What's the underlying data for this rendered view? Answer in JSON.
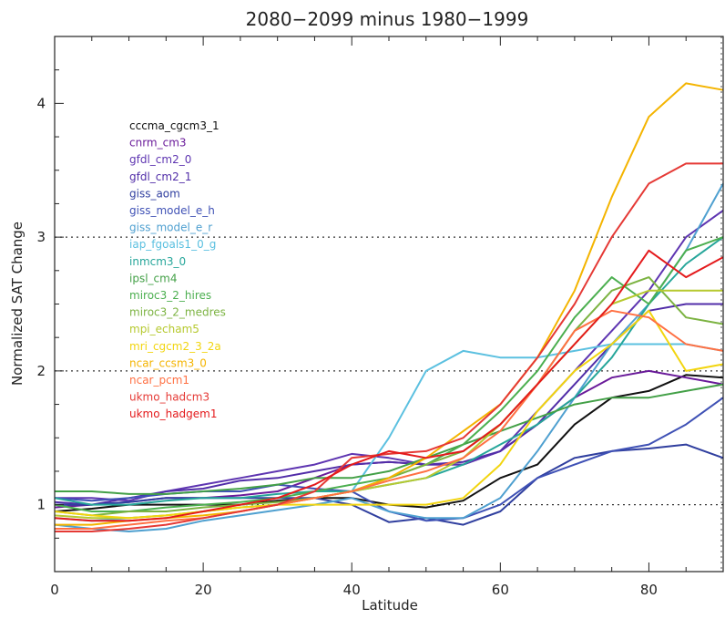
{
  "chart_data": {
    "type": "line",
    "title": "2080−2099 minus 1980−1999",
    "xlabel": "Latitude",
    "ylabel": "Normalized SAT Change",
    "xlim": [
      0,
      90
    ],
    "ylim": [
      0.5,
      4.5
    ],
    "x_ticks": [
      "0",
      "20",
      "40",
      "60",
      "80"
    ],
    "y_ticks": [
      "1",
      "2",
      "3",
      "4"
    ],
    "reference_lines": [
      1,
      2,
      3
    ],
    "legend_placement": "upper-left",
    "x": [
      0,
      5,
      10,
      15,
      20,
      25,
      30,
      35,
      40,
      45,
      50,
      55,
      60,
      65,
      70,
      75,
      80,
      85,
      90
    ],
    "series": [
      {
        "name": "cccma_cgcm3_1",
        "color": "#111111",
        "values": [
          0.95,
          0.97,
          1.0,
          1.0,
          1.0,
          1.0,
          1.03,
          1.05,
          1.05,
          1.0,
          0.98,
          1.03,
          1.2,
          1.3,
          1.6,
          1.8,
          1.85,
          1.97,
          1.95
        ]
      },
      {
        "name": "cnrm_cm3",
        "color": "#6a1b9a",
        "values": [
          0.98,
          1.0,
          1.02,
          1.05,
          1.05,
          1.07,
          1.1,
          1.2,
          1.3,
          1.32,
          1.3,
          1.3,
          1.4,
          1.6,
          1.8,
          1.95,
          2.0,
          1.95,
          1.9
        ]
      },
      {
        "name": "gfdl_cm2_0",
        "color": "#5e35b1",
        "values": [
          1.05,
          1.05,
          1.03,
          1.1,
          1.15,
          1.2,
          1.25,
          1.3,
          1.38,
          1.35,
          1.3,
          1.3,
          1.4,
          1.7,
          2.0,
          2.3,
          2.6,
          3.0,
          3.2
        ]
      },
      {
        "name": "gfdl_cm2_1",
        "color": "#512da8",
        "values": [
          1.02,
          1.0,
          1.05,
          1.1,
          1.12,
          1.18,
          1.2,
          1.25,
          1.3,
          1.32,
          1.3,
          1.32,
          1.4,
          1.6,
          1.9,
          2.2,
          2.45,
          2.5,
          2.5
        ]
      },
      {
        "name": "giss_aom",
        "color": "#303f9f",
        "values": [
          1.0,
          1.0,
          1.02,
          1.05,
          1.05,
          1.05,
          1.05,
          1.05,
          1.0,
          0.87,
          0.9,
          0.85,
          0.95,
          1.2,
          1.35,
          1.4,
          1.42,
          1.45,
          1.35
        ]
      },
      {
        "name": "giss_model_e_h",
        "color": "#3f51b5",
        "values": [
          1.05,
          1.03,
          1.05,
          1.08,
          1.1,
          1.1,
          1.15,
          1.12,
          1.1,
          0.95,
          0.88,
          0.9,
          1.0,
          1.2,
          1.3,
          1.4,
          1.45,
          1.6,
          1.8
        ]
      },
      {
        "name": "giss_model_e_r",
        "color": "#4fa0d0",
        "values": [
          0.85,
          0.82,
          0.8,
          0.82,
          0.88,
          0.92,
          0.96,
          1.0,
          1.05,
          0.95,
          0.9,
          0.9,
          1.05,
          1.4,
          1.8,
          2.2,
          2.5,
          2.9,
          3.4
        ]
      },
      {
        "name": "iap_fgoals1_0_g",
        "color": "#5bc0e0",
        "values": [
          0.9,
          0.88,
          0.9,
          0.92,
          0.95,
          0.98,
          1.0,
          1.05,
          1.1,
          1.5,
          2.0,
          2.15,
          2.1,
          2.1,
          2.15,
          2.2,
          2.2,
          2.2,
          2.15
        ]
      },
      {
        "name": "inmcm3_0",
        "color": "#26a69a",
        "values": [
          1.05,
          1.0,
          1.0,
          1.03,
          1.05,
          1.05,
          1.08,
          1.1,
          1.1,
          1.15,
          1.2,
          1.3,
          1.45,
          1.6,
          1.8,
          2.1,
          2.5,
          2.8,
          3.0
        ]
      },
      {
        "name": "ipsl_cm4",
        "color": "#43a047",
        "values": [
          1.1,
          1.1,
          1.08,
          1.08,
          1.1,
          1.12,
          1.15,
          1.2,
          1.2,
          1.25,
          1.35,
          1.45,
          1.55,
          1.65,
          1.75,
          1.8,
          1.8,
          1.85,
          1.9
        ]
      },
      {
        "name": "miroc3_2_hires",
        "color": "#4caf50",
        "values": [
          1.0,
          0.95,
          0.95,
          0.98,
          1.0,
          1.02,
          1.05,
          1.1,
          1.15,
          1.2,
          1.3,
          1.45,
          1.7,
          2.0,
          2.4,
          2.7,
          2.5,
          2.9,
          3.0
        ]
      },
      {
        "name": "miroc3_2_medres",
        "color": "#7cb342",
        "values": [
          0.95,
          0.92,
          0.95,
          0.95,
          0.98,
          1.0,
          1.02,
          1.05,
          1.1,
          1.2,
          1.3,
          1.4,
          1.6,
          1.9,
          2.3,
          2.6,
          2.7,
          2.4,
          2.35
        ]
      },
      {
        "name": "mpi_echam5",
        "color": "#b6c92f",
        "values": [
          0.92,
          0.9,
          0.9,
          0.92,
          0.95,
          0.98,
          1.0,
          1.05,
          1.1,
          1.15,
          1.2,
          1.35,
          1.6,
          1.9,
          2.2,
          2.5,
          2.6,
          2.6,
          2.6
        ]
      },
      {
        "name": "mri_cgcm2_3_2a",
        "color": "#f2d50f",
        "values": [
          0.95,
          0.92,
          0.9,
          0.92,
          0.95,
          0.98,
          1.0,
          1.0,
          1.0,
          1.0,
          1.0,
          1.05,
          1.3,
          1.7,
          2.0,
          2.2,
          2.45,
          2.0,
          2.05
        ]
      },
      {
        "name": "ncar_ccsm3_0",
        "color": "#f4b400",
        "values": [
          0.85,
          0.85,
          0.88,
          0.9,
          0.92,
          0.95,
          1.0,
          1.05,
          1.1,
          1.2,
          1.35,
          1.55,
          1.75,
          2.1,
          2.6,
          3.3,
          3.9,
          4.15,
          4.1
        ]
      },
      {
        "name": "ncar_pcm1",
        "color": "#ff7043",
        "values": [
          0.82,
          0.82,
          0.85,
          0.88,
          0.9,
          0.95,
          1.0,
          1.05,
          1.1,
          1.18,
          1.25,
          1.35,
          1.55,
          1.9,
          2.3,
          2.45,
          2.4,
          2.2,
          2.15
        ]
      },
      {
        "name": "ukmo_hadcm3",
        "color": "#e53935",
        "values": [
          0.8,
          0.8,
          0.82,
          0.85,
          0.9,
          0.95,
          1.0,
          1.1,
          1.35,
          1.38,
          1.4,
          1.5,
          1.75,
          2.1,
          2.5,
          3.0,
          3.4,
          3.55,
          3.55
        ]
      },
      {
        "name": "ukmo_hadgem1",
        "color": "#e41a1c",
        "values": [
          0.9,
          0.88,
          0.88,
          0.9,
          0.95,
          1.0,
          1.05,
          1.15,
          1.3,
          1.4,
          1.35,
          1.4,
          1.6,
          1.9,
          2.2,
          2.5,
          2.9,
          2.7,
          2.85
        ]
      }
    ]
  }
}
